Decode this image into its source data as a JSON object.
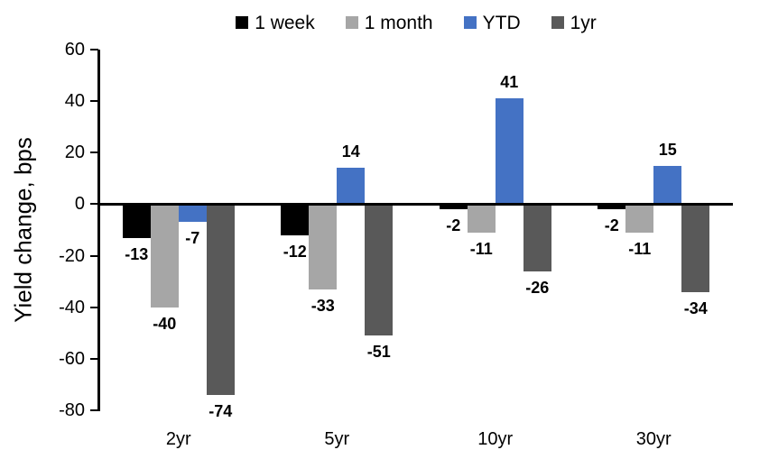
{
  "chart_data": {
    "type": "bar",
    "title": "",
    "ylabel": "Yield change, bps",
    "xlabel": "",
    "categories": [
      "2yr",
      "5yr",
      "10yr",
      "30yr"
    ],
    "series": [
      {
        "name": "1 week",
        "color": "#000000",
        "values": [
          -13,
          -12,
          -2,
          -2
        ]
      },
      {
        "name": "1 month",
        "color": "#A6A6A6",
        "values": [
          -40,
          -33,
          -11,
          -11
        ]
      },
      {
        "name": "YTD",
        "color": "#4472C4",
        "values": [
          -7,
          14,
          41,
          15
        ]
      },
      {
        "name": "1yr",
        "color": "#595959",
        "values": [
          -74,
          -51,
          -26,
          -34
        ]
      }
    ],
    "ylim": [
      -80,
      60
    ],
    "ytick_step": 20,
    "yticks": [
      60,
      40,
      20,
      0,
      -20,
      -40,
      -60,
      -80
    ],
    "grid": false,
    "legend_position": "top",
    "data_labels": "outside-end",
    "axis_color": "#000000"
  }
}
